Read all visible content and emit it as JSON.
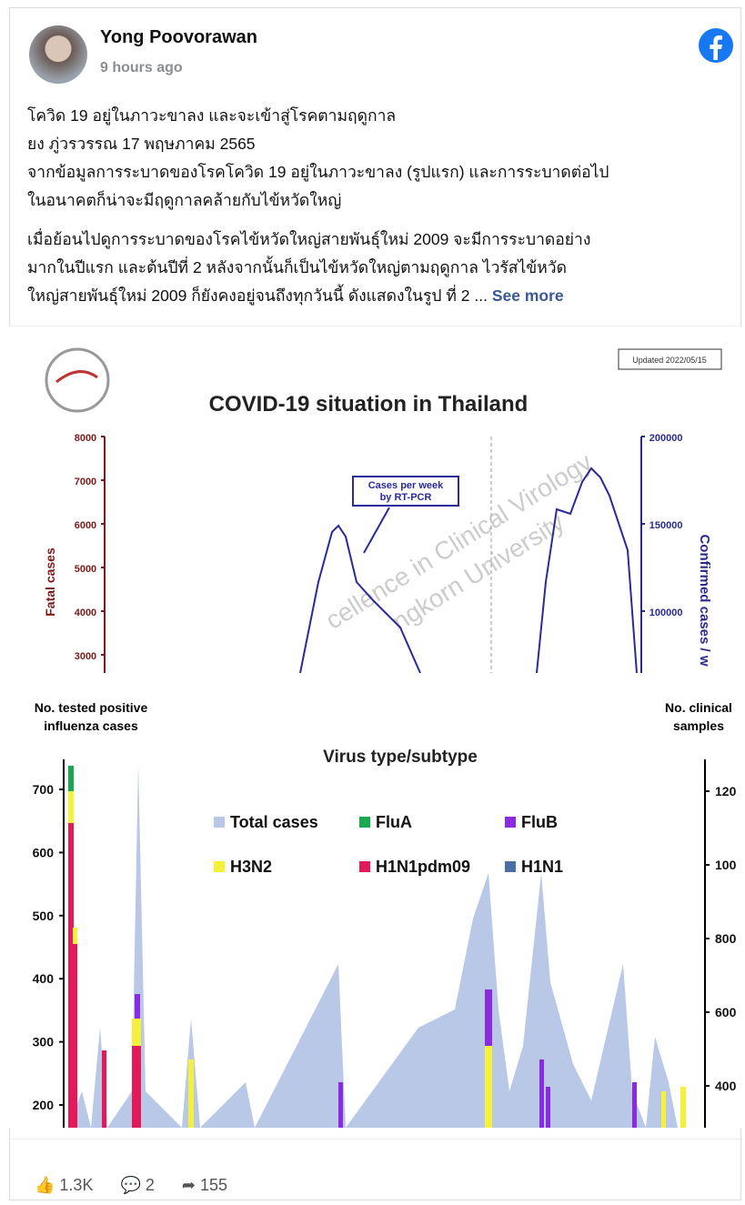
{
  "header": {
    "name": "Yong Poovorawan",
    "time": "9 hours ago"
  },
  "post": {
    "lines": [
      "โควิด 19 อยู่ในภาวะขาลง และจะเข้าสู่โรคตามฤดูกาล",
      "ยง ภู่วรวรรณ 17 พฤษภาคม 2565",
      "จากข้อมูลการระบาดของโรคโควิด 19 อยู่ในภาวะขาลง (รูปแรก) และการระบาดต่อไป",
      "ในอนาคตก็น่าจะมีฤดูกาลคล้ายกับไข้หวัดใหญ่",
      "เมื่อย้อนไปดูการระบาดของโรคไข้หวัดใหญ่สายพันธุ์ใหม่ 2009 จะมีการระบาดอย่าง",
      "มากในปีแรก และต้นปีที่ 2 หลังจากนั้นก็เป็นไข้หวัดใหญ่ตามฤดูกาล ไวรัสไข้หวัด",
      "ใหญ่สายพันธุ์ใหม่ 2009 ก็ยังคงอยู่จนถึงทุกวันนี้ ดังแสดงในรูป ที่ 2 ..."
    ],
    "see_more": "See more"
  },
  "image1": {
    "updated": "Updated 2022/05/15",
    "title": "COVID-19 situation in Thailand",
    "left_label": "Fatal cases",
    "left_ticks": [
      "8000",
      "7000",
      "6000",
      "5000",
      "4000",
      "3000"
    ],
    "right_label": "Confirmed cases / w",
    "right_ticks": [
      "200000",
      "150000",
      "100000"
    ],
    "annotation": [
      "Cases per week",
      "by RT-PCR"
    ],
    "watermark": [
      "cellence in Clinical Virology",
      "ngkorn University"
    ]
  },
  "image2": {
    "left_label": [
      "No. tested positive",
      "influenza cases"
    ],
    "right_label": [
      "No. clinical",
      "samples"
    ],
    "title": "Virus type/subtype",
    "left_ticks": [
      "700",
      "600",
      "500",
      "400",
      "300",
      "200"
    ],
    "right_ticks": [
      "120",
      "100",
      "800",
      "600",
      "400"
    ],
    "legend": [
      {
        "name": "Total cases",
        "color": "#b8c8e6"
      },
      {
        "name": "FluA",
        "color": "#1aa84e"
      },
      {
        "name": "FluB",
        "color": "#8a2be2"
      },
      {
        "name": "H3N2",
        "color": "#f5f03a"
      },
      {
        "name": "H1N1pdm09",
        "color": "#e3195a"
      },
      {
        "name": "H1N1",
        "color": "#4a6fa5"
      }
    ]
  },
  "footer": {
    "likes": "1.3K",
    "comments": "2",
    "shares": "155"
  }
}
